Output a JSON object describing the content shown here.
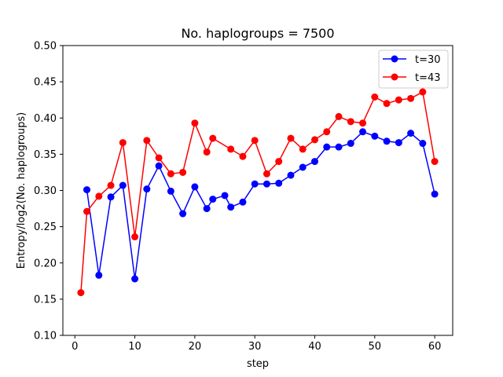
{
  "chart_data": {
    "type": "line",
    "title": "No. haplogroups = 7500",
    "xlabel": "step",
    "ylabel": "Entropy/log2(No. haplogroups)",
    "xlim": [
      -2.0,
      63.0
    ],
    "ylim": [
      0.1,
      0.5
    ],
    "xticks": [
      0,
      10,
      20,
      30,
      40,
      50,
      60
    ],
    "yticks": [
      0.1,
      0.15,
      0.2,
      0.25,
      0.3,
      0.35,
      0.4,
      0.45,
      0.5
    ],
    "ytick_labels": [
      "0.10",
      "0.15",
      "0.20",
      "0.25",
      "0.30",
      "0.35",
      "0.40",
      "0.45",
      "0.50"
    ],
    "grid": false,
    "legend_position": "top-right",
    "series": [
      {
        "name": "t=30",
        "color": "#0000ff",
        "marker": "circle",
        "x": [
          2,
          4,
          6,
          8,
          10,
          12,
          14,
          16,
          18,
          20,
          22,
          23,
          25,
          26,
          28,
          30,
          32,
          34,
          36,
          38,
          40,
          42,
          44,
          46,
          48,
          50,
          52,
          54,
          56,
          58,
          60
        ],
        "y": [
          0.301,
          0.183,
          0.291,
          0.307,
          0.178,
          0.302,
          0.334,
          0.299,
          0.268,
          0.305,
          0.275,
          0.288,
          0.293,
          0.277,
          0.284,
          0.309,
          0.309,
          0.31,
          0.321,
          0.332,
          0.34,
          0.36,
          0.36,
          0.365,
          0.381,
          0.375,
          0.368,
          0.366,
          0.379,
          0.365,
          0.295
        ]
      },
      {
        "name": "t=43",
        "color": "#ff0000",
        "marker": "circle",
        "x": [
          1,
          2,
          4,
          6,
          8,
          10,
          12,
          14,
          16,
          18,
          20,
          22,
          23,
          26,
          28,
          30,
          32,
          34,
          36,
          38,
          40,
          42,
          44,
          46,
          48,
          50,
          52,
          54,
          56,
          58,
          60
        ],
        "y": [
          0.159,
          0.271,
          0.292,
          0.307,
          0.366,
          0.236,
          0.369,
          0.345,
          0.323,
          0.325,
          0.393,
          0.353,
          0.372,
          0.357,
          0.347,
          0.369,
          0.323,
          0.34,
          0.372,
          0.357,
          0.37,
          0.381,
          0.402,
          0.395,
          0.393,
          0.429,
          0.42,
          0.425,
          0.427,
          0.436,
          0.34
        ]
      }
    ]
  }
}
